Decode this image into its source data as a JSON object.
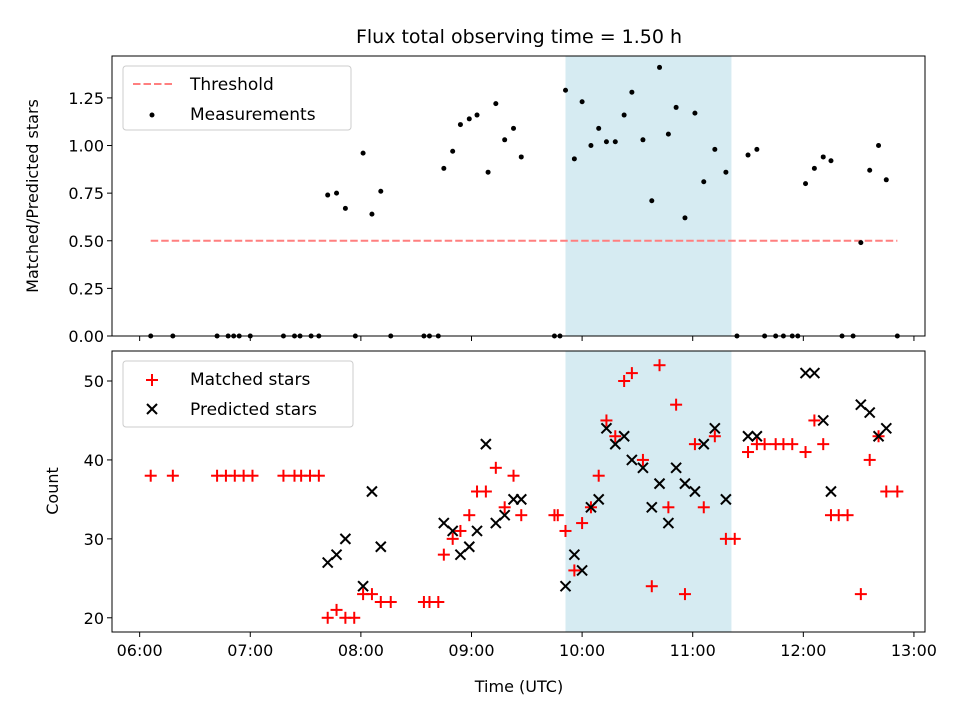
{
  "title": "Flux total observing time = 1.50 h",
  "colors": {
    "threshold": "#ff7f7f",
    "measurement": "#000000",
    "matched": "#ff0000",
    "predicted": "#000000",
    "highlight": "#add8e6"
  },
  "chart_data": [
    {
      "type": "scatter",
      "panel": "top",
      "xlabel": "",
      "ylabel": "Matched/Predicted stars",
      "x_units": "hours UTC",
      "xlim": [
        5.75,
        13.1
      ],
      "ylim": [
        0,
        1.47
      ],
      "yticks": [
        0.0,
        0.25,
        0.5,
        0.75,
        1.0,
        1.25
      ],
      "ytick_labels": [
        "0.00",
        "0.25",
        "0.50",
        "0.75",
        "1.00",
        "1.25"
      ],
      "grid": false,
      "legend_position": "upper-left",
      "legend": [
        "Threshold",
        "Measurements"
      ],
      "highlight_span": [
        9.85,
        11.35
      ],
      "series": [
        {
          "name": "Threshold",
          "kind": "dashed-line",
          "points": [
            [
              6.1,
              0.5
            ],
            [
              12.85,
              0.5
            ]
          ]
        },
        {
          "name": "Measurements",
          "kind": "dots",
          "points": [
            [
              6.1,
              0.0
            ],
            [
              6.3,
              0.0
            ],
            [
              6.7,
              0.0
            ],
            [
              6.8,
              0.0
            ],
            [
              6.85,
              0.0
            ],
            [
              6.9,
              0.0
            ],
            [
              7.0,
              0.0
            ],
            [
              7.3,
              0.0
            ],
            [
              7.4,
              0.0
            ],
            [
              7.45,
              0.0
            ],
            [
              7.55,
              0.0
            ],
            [
              7.62,
              0.0
            ],
            [
              7.7,
              0.74
            ],
            [
              7.78,
              0.75
            ],
            [
              7.86,
              0.67
            ],
            [
              7.95,
              0.0
            ],
            [
              8.02,
              0.96
            ],
            [
              8.1,
              0.64
            ],
            [
              8.18,
              0.76
            ],
            [
              8.27,
              0.0
            ],
            [
              8.57,
              0.0
            ],
            [
              8.62,
              0.0
            ],
            [
              8.7,
              0.0
            ],
            [
              8.75,
              0.88
            ],
            [
              8.83,
              0.97
            ],
            [
              8.9,
              1.11
            ],
            [
              8.98,
              1.14
            ],
            [
              9.05,
              1.16
            ],
            [
              9.15,
              0.86
            ],
            [
              9.22,
              1.22
            ],
            [
              9.3,
              1.03
            ],
            [
              9.38,
              1.09
            ],
            [
              9.45,
              0.94
            ],
            [
              9.75,
              0.0
            ],
            [
              9.8,
              0.0
            ],
            [
              9.85,
              1.29
            ],
            [
              9.93,
              0.93
            ],
            [
              10.0,
              1.23
            ],
            [
              10.08,
              1.0
            ],
            [
              10.15,
              1.09
            ],
            [
              10.22,
              1.02
            ],
            [
              10.3,
              1.02
            ],
            [
              10.38,
              1.16
            ],
            [
              10.45,
              1.28
            ],
            [
              10.55,
              1.03
            ],
            [
              10.63,
              0.71
            ],
            [
              10.7,
              1.41
            ],
            [
              10.78,
              1.06
            ],
            [
              10.85,
              1.2
            ],
            [
              10.93,
              0.62
            ],
            [
              11.02,
              1.17
            ],
            [
              11.1,
              0.81
            ],
            [
              11.2,
              0.98
            ],
            [
              11.3,
              0.86
            ],
            [
              11.4,
              0.0
            ],
            [
              11.5,
              0.95
            ],
            [
              11.58,
              0.98
            ],
            [
              11.65,
              0.0
            ],
            [
              11.75,
              0.0
            ],
            [
              11.82,
              0.0
            ],
            [
              11.9,
              0.0
            ],
            [
              11.95,
              0.0
            ],
            [
              12.02,
              0.8
            ],
            [
              12.1,
              0.88
            ],
            [
              12.18,
              0.94
            ],
            [
              12.25,
              0.92
            ],
            [
              12.35,
              0.0
            ],
            [
              12.45,
              0.0
            ],
            [
              12.52,
              0.49
            ],
            [
              12.6,
              0.87
            ],
            [
              12.68,
              1.0
            ],
            [
              12.75,
              0.82
            ],
            [
              12.85,
              0.0
            ]
          ]
        }
      ]
    },
    {
      "type": "scatter",
      "panel": "bottom",
      "xlabel": "Time (UTC)",
      "ylabel": "Count",
      "x_units": "hours UTC",
      "xlim": [
        5.75,
        13.1
      ],
      "ylim": [
        18.2,
        53.8
      ],
      "yticks": [
        20,
        30,
        40,
        50
      ],
      "ytick_labels": [
        "20",
        "30",
        "40",
        "50"
      ],
      "xticks": [
        6,
        7,
        8,
        9,
        10,
        11,
        12,
        13
      ],
      "xtick_labels": [
        "06:00",
        "07:00",
        "08:00",
        "09:00",
        "10:00",
        "11:00",
        "12:00",
        "13:00"
      ],
      "grid": false,
      "legend_position": "upper-left",
      "legend": [
        "Matched stars",
        "Predicted stars"
      ],
      "highlight_span": [
        9.85,
        11.35
      ],
      "series": [
        {
          "name": "Matched stars",
          "marker": "+",
          "points": [
            [
              6.1,
              38
            ],
            [
              6.3,
              38
            ],
            [
              6.7,
              38
            ],
            [
              6.78,
              38
            ],
            [
              6.86,
              38
            ],
            [
              6.94,
              38
            ],
            [
              7.02,
              38
            ],
            [
              7.3,
              38
            ],
            [
              7.4,
              38
            ],
            [
              7.46,
              38
            ],
            [
              7.54,
              38
            ],
            [
              7.62,
              38
            ],
            [
              7.7,
              20
            ],
            [
              7.78,
              21
            ],
            [
              7.86,
              20
            ],
            [
              7.94,
              20
            ],
            [
              8.02,
              23
            ],
            [
              8.1,
              23
            ],
            [
              8.18,
              22
            ],
            [
              8.27,
              22
            ],
            [
              8.57,
              22
            ],
            [
              8.62,
              22
            ],
            [
              8.7,
              22
            ],
            [
              8.75,
              28
            ],
            [
              8.83,
              30
            ],
            [
              8.9,
              31
            ],
            [
              8.98,
              33
            ],
            [
              9.05,
              36
            ],
            [
              9.13,
              36
            ],
            [
              9.22,
              39
            ],
            [
              9.3,
              34
            ],
            [
              9.38,
              38
            ],
            [
              9.45,
              33
            ],
            [
              9.75,
              33
            ],
            [
              9.78,
              33
            ],
            [
              9.85,
              31
            ],
            [
              9.93,
              26
            ],
            [
              10.0,
              32
            ],
            [
              10.08,
              34
            ],
            [
              10.15,
              38
            ],
            [
              10.22,
              45
            ],
            [
              10.3,
              43
            ],
            [
              10.38,
              50
            ],
            [
              10.45,
              51
            ],
            [
              10.55,
              40
            ],
            [
              10.63,
              24
            ],
            [
              10.7,
              52
            ],
            [
              10.78,
              34
            ],
            [
              10.85,
              47
            ],
            [
              10.93,
              23
            ],
            [
              11.02,
              42
            ],
            [
              11.1,
              34
            ],
            [
              11.2,
              43
            ],
            [
              11.3,
              30
            ],
            [
              11.38,
              30
            ],
            [
              11.5,
              41
            ],
            [
              11.58,
              42
            ],
            [
              11.65,
              42
            ],
            [
              11.75,
              42
            ],
            [
              11.82,
              42
            ],
            [
              11.9,
              42
            ],
            [
              12.02,
              41
            ],
            [
              12.1,
              45
            ],
            [
              12.18,
              42
            ],
            [
              12.25,
              33
            ],
            [
              12.32,
              33
            ],
            [
              12.4,
              33
            ],
            [
              12.52,
              23
            ],
            [
              12.6,
              40
            ],
            [
              12.68,
              43
            ],
            [
              12.75,
              36
            ],
            [
              12.85,
              36
            ]
          ]
        },
        {
          "name": "Predicted stars",
          "marker": "x",
          "points": [
            [
              7.7,
              27
            ],
            [
              7.78,
              28
            ],
            [
              7.86,
              30
            ],
            [
              8.02,
              24
            ],
            [
              8.1,
              36
            ],
            [
              8.18,
              29
            ],
            [
              8.75,
              32
            ],
            [
              8.83,
              31
            ],
            [
              8.9,
              28
            ],
            [
              8.98,
              29
            ],
            [
              9.05,
              31
            ],
            [
              9.13,
              42
            ],
            [
              9.22,
              32
            ],
            [
              9.3,
              33
            ],
            [
              9.38,
              35
            ],
            [
              9.45,
              35
            ],
            [
              9.85,
              24
            ],
            [
              9.93,
              28
            ],
            [
              10.0,
              26
            ],
            [
              10.08,
              34
            ],
            [
              10.15,
              35
            ],
            [
              10.22,
              44
            ],
            [
              10.3,
              42
            ],
            [
              10.38,
              43
            ],
            [
              10.45,
              40
            ],
            [
              10.55,
              39
            ],
            [
              10.63,
              34
            ],
            [
              10.7,
              37
            ],
            [
              10.78,
              32
            ],
            [
              10.85,
              39
            ],
            [
              10.93,
              37
            ],
            [
              11.02,
              36
            ],
            [
              11.1,
              42
            ],
            [
              11.2,
              44
            ],
            [
              11.3,
              35
            ],
            [
              11.5,
              43
            ],
            [
              11.58,
              43
            ],
            [
              12.02,
              51
            ],
            [
              12.1,
              51
            ],
            [
              12.18,
              45
            ],
            [
              12.25,
              36
            ],
            [
              12.52,
              47
            ],
            [
              12.6,
              46
            ],
            [
              12.68,
              43
            ],
            [
              12.75,
              44
            ]
          ]
        }
      ]
    }
  ]
}
